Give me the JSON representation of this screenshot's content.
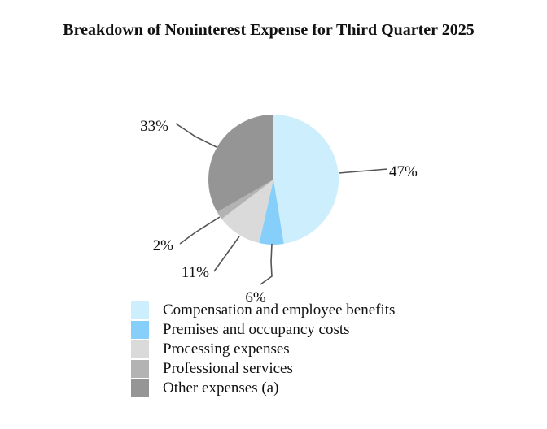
{
  "chart_data": {
    "type": "pie",
    "title": "Breakdown of Noninterest Expense for Third Quarter 2025",
    "slices": [
      {
        "name": "Compensation and employee benefits",
        "value": 47,
        "label": "47%",
        "color": "#cdeefc"
      },
      {
        "name": "Premises and occupancy costs",
        "value": 6,
        "label": "6%",
        "color": "#87cffb"
      },
      {
        "name": "Processing expenses",
        "value": 11,
        "label": "11%",
        "color": "#dadada"
      },
      {
        "name": "Professional services",
        "value": 2,
        "label": "2%",
        "color": "#b3b3b3"
      },
      {
        "name": "Other expenses (a)",
        "value": 33,
        "label": "33%",
        "color": "#959595"
      }
    ],
    "start": "top",
    "direction": "clockwise",
    "legend_position": "bottom"
  }
}
